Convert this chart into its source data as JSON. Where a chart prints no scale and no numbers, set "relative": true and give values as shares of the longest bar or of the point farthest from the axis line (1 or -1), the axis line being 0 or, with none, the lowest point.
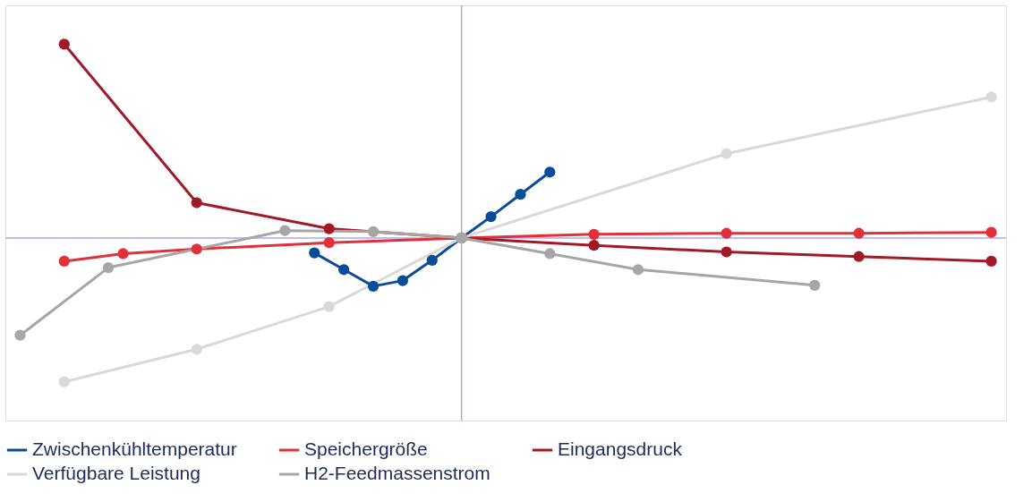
{
  "chart_data": {
    "type": "line",
    "relative": true,
    "grid": false,
    "legend": "bottom",
    "marker": "circle",
    "line_style": "solid",
    "ref_lines": [
      {
        "axis": "y",
        "value": 0,
        "color": "#a8a8f0"
      }
    ],
    "categories": [
      null,
      null,
      null,
      null,
      null,
      null,
      null,
      null,
      null,
      null,
      null,
      null,
      null,
      null,
      null,
      null,
      null,
      null,
      null,
      null,
      null,
      null,
      null,
      null,
      null,
      null,
      null,
      null,
      null,
      null,
      null,
      null,
      null,
      null,
      null,
      null,
      null,
      null,
      null,
      null,
      null,
      null,
      null,
      null,
      null,
      null,
      null,
      null,
      null,
      null,
      null,
      null,
      null,
      null,
      null,
      null,
      null,
      null,
      null,
      null,
      null,
      null,
      null,
      null,
      null,
      null,
      null
    ],
    "series": [
      {
        "name": "Zwischenkühltemperatur",
        "color": "#0b4c9a",
        "values": [
          null,
          null,
          null,
          null,
          null,
          null,
          null,
          null,
          null,
          null,
          null,
          null,
          null,
          null,
          null,
          null,
          null,
          null,
          null,
          null,
          -0.077,
          null,
          -0.163,
          null,
          -0.249,
          null,
          -0.22,
          null,
          -0.115,
          null,
          0,
          null,
          0.11,
          null,
          0.225,
          null,
          0.34,
          null,
          null,
          null,
          null,
          null,
          null,
          null,
          null,
          null,
          null,
          null,
          null,
          null,
          null,
          null,
          null,
          null,
          null,
          null,
          null,
          null,
          null,
          null,
          null,
          null,
          null,
          null,
          null,
          null,
          null
        ]
      },
      {
        "name": "Speichergröße",
        "color": "#e0303a",
        "values": [
          null,
          null,
          null,
          -0.12,
          null,
          null,
          null,
          -0.081,
          null,
          null,
          null,
          null,
          -0.057,
          null,
          null,
          null,
          null,
          null,
          null,
          null,
          null,
          -0.024,
          null,
          null,
          null,
          null,
          null,
          null,
          null,
          null,
          0,
          null,
          null,
          null,
          null,
          null,
          null,
          null,
          null,
          0.019,
          null,
          null,
          null,
          null,
          null,
          null,
          null,
          null,
          0.024,
          null,
          null,
          null,
          null,
          null,
          null,
          null,
          null,
          0.024,
          null,
          null,
          null,
          null,
          null,
          null,
          null,
          null,
          0.029
        ]
      },
      {
        "name": "Eingangsdruck",
        "color": "#a01a28",
        "values": [
          null,
          null,
          null,
          1,
          null,
          null,
          null,
          null,
          null,
          null,
          null,
          null,
          0.182,
          null,
          null,
          null,
          null,
          null,
          null,
          null,
          null,
          0.048,
          null,
          null,
          null,
          null,
          null,
          null,
          null,
          null,
          0,
          null,
          null,
          null,
          null,
          null,
          null,
          null,
          null,
          -0.038,
          null,
          null,
          null,
          null,
          null,
          null,
          null,
          null,
          -0.072,
          null,
          null,
          null,
          null,
          null,
          null,
          null,
          null,
          -0.096,
          null,
          null,
          null,
          null,
          null,
          null,
          null,
          null,
          -0.12
        ]
      },
      {
        "name": "Verfügbare Leistung",
        "color": "#d9d9d9",
        "values": [
          null,
          null,
          null,
          -0.742,
          null,
          null,
          null,
          null,
          null,
          null,
          null,
          null,
          -0.574,
          null,
          null,
          null,
          null,
          null,
          null,
          null,
          null,
          -0.354,
          null,
          null,
          null,
          null,
          null,
          null,
          null,
          null,
          0,
          null,
          null,
          null,
          null,
          null,
          null,
          null,
          null,
          null,
          null,
          null,
          null,
          null,
          null,
          null,
          null,
          null,
          0.435,
          null,
          null,
          null,
          null,
          null,
          null,
          null,
          null,
          null,
          null,
          null,
          null,
          null,
          null,
          null,
          null,
          null,
          0.727
        ]
      },
      {
        "name": "H2-Feedmassenstrom",
        "color": "#a6a6a6",
        "values": [
          -0.502,
          null,
          null,
          null,
          null,
          null,
          -0.153,
          null,
          null,
          null,
          null,
          null,
          null,
          null,
          null,
          null,
          null,
          null,
          0.038,
          null,
          null,
          null,
          null,
          null,
          0.033,
          null,
          null,
          null,
          null,
          null,
          0,
          null,
          null,
          null,
          null,
          null,
          -0.081,
          null,
          null,
          null,
          null,
          null,
          -0.163,
          null,
          null,
          null,
          null,
          null,
          null,
          null,
          null,
          null,
          null,
          null,
          -0.244,
          null,
          null,
          null,
          null,
          null,
          null,
          null,
          null,
          null,
          null,
          null,
          null
        ]
      }
    ]
  }
}
